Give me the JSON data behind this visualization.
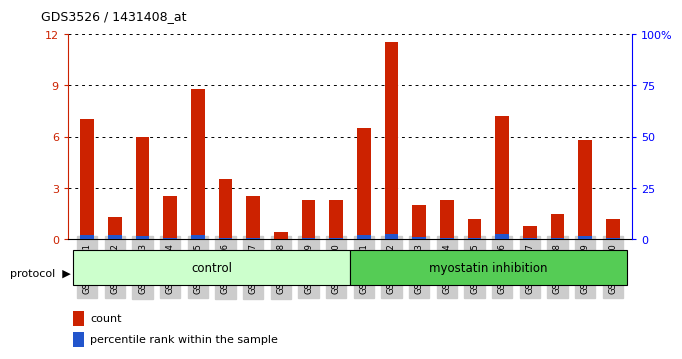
{
  "title": "GDS3526 / 1431408_at",
  "samples": [
    "GSM344631",
    "GSM344632",
    "GSM344633",
    "GSM344634",
    "GSM344635",
    "GSM344636",
    "GSM344637",
    "GSM344638",
    "GSM344639",
    "GSM344640",
    "GSM344641",
    "GSM344642",
    "GSM344643",
    "GSM344644",
    "GSM344645",
    "GSM344646",
    "GSM344647",
    "GSM344648",
    "GSM344649",
    "GSM344650"
  ],
  "count_values": [
    7.0,
    1.3,
    6.0,
    2.5,
    8.8,
    3.5,
    2.5,
    0.4,
    2.3,
    2.3,
    6.5,
    11.5,
    2.0,
    2.3,
    1.2,
    7.2,
    0.8,
    1.5,
    5.8,
    1.2
  ],
  "percentile_values": [
    0.25,
    0.25,
    0.2,
    0.06,
    0.25,
    0.06,
    0.06,
    0.04,
    0.06,
    0.06,
    0.25,
    0.3,
    0.12,
    0.06,
    0.06,
    0.3,
    0.06,
    0.06,
    0.18,
    0.06
  ],
  "count_color": "#cc2200",
  "percentile_color": "#2255cc",
  "ylim_left": [
    0,
    12
  ],
  "ylim_right": [
    0,
    100
  ],
  "yticks_left": [
    0,
    3,
    6,
    9,
    12
  ],
  "yticks_right": [
    0,
    25,
    50,
    75,
    100
  ],
  "ytick_labels_right": [
    "0",
    "25",
    "50",
    "75",
    "100%"
  ],
  "control_label": "control",
  "myostatin_label": "myostatin inhibition",
  "protocol_label": "protocol",
  "legend_count": "count",
  "legend_percentile": "percentile rank within the sample",
  "bar_width": 0.5,
  "control_bg": "#ccffcc",
  "myostatin_bg": "#55cc55"
}
